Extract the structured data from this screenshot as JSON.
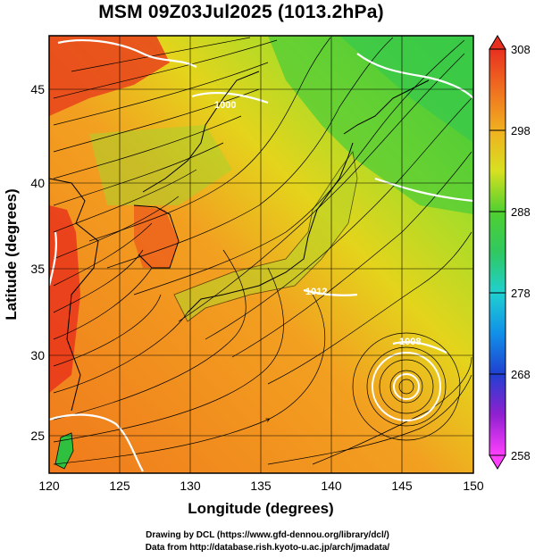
{
  "title": "MSM 09Z03Jul2025 (1013.2hPa)",
  "xlabel": "Longitude (degrees)",
  "ylabel": "Latitude  (degrees)",
  "x_ticks": [
    "120",
    "125",
    "130",
    "135",
    "140",
    "145",
    "150"
  ],
  "y_ticks": [
    "25",
    "30",
    "35",
    "40",
    "45"
  ],
  "colorbar_labels": [
    "308",
    "298",
    "288",
    "278",
    "268",
    "258"
  ],
  "contour_labels": [
    "1000",
    "1012",
    "1008"
  ],
  "credits": {
    "line1": "Drawing by DCL (https://www.gfd-dennou.org/library/dcl/)",
    "line2": "Data from http://database.rish.kyoto-u.ac.jp/arch/jmadata/"
  },
  "colors": {
    "hot": "#e8321e",
    "warm": "#f08c1e",
    "mild": "#e6e61e",
    "cool": "#3cc83c",
    "cold": "#28d2d2",
    "very_cold": "#1e3cc8",
    "min": "#c81ec8"
  },
  "chart_data": {
    "type": "heatmap",
    "title": "MSM 09Z03Jul2025 (1013.2hPa)",
    "xlabel": "Longitude (degrees)",
    "ylabel": "Latitude  (degrees)",
    "xlim": [
      120,
      150
    ],
    "ylim": [
      22.4,
      47.6
    ],
    "colorbar_range": [
      258,
      308
    ],
    "colorbar_ticks": [
      308,
      298,
      288,
      278,
      268,
      258
    ],
    "grid": true
  }
}
